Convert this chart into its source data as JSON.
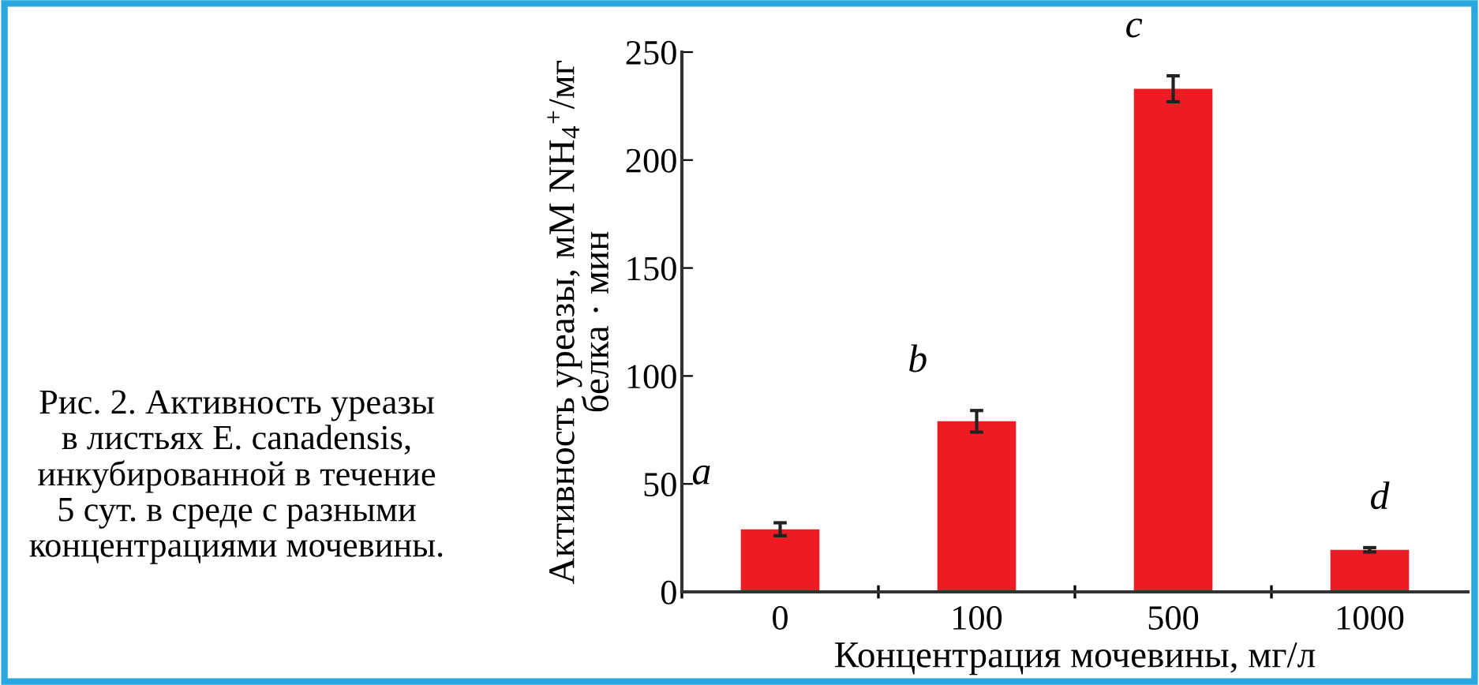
{
  "chart_data": {
    "type": "bar",
    "xlabel": "Концентрация мочевины, мг/л",
    "ylabel": "Активность уреазы, мМ NH$_{4}$$^{+}$/мг\nбелка · мин",
    "categories": [
      "0",
      "100",
      "500",
      "1000"
    ],
    "series": [
      {
        "color": "#ed1c24",
        "values": [
          29,
          79,
          233,
          19.5
        ],
        "errors": [
          3,
          5,
          6,
          1
        ]
      }
    ],
    "ylim": [
      0,
      250
    ],
    "yticks": [
      0,
      50,
      100,
      150,
      200,
      250
    ],
    "grid": false,
    "legend": false,
    "annotations": [
      "a",
      "b",
      "c",
      "d",
      "Рис. 2. Активность уреазы\nв листьях E. canadensis,\nинкубированной в течение\n5 сут. в среде с разными\nконцентрациями мочевины."
    ]
  }
}
